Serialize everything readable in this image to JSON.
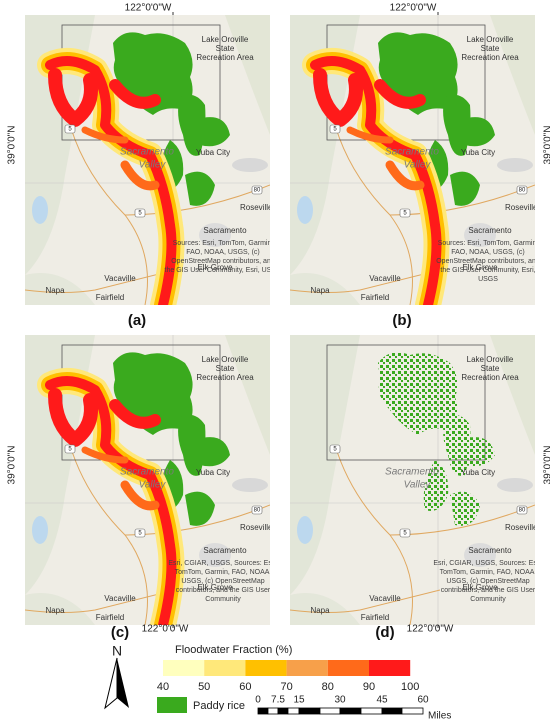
{
  "panels": [
    {
      "label": "(a)",
      "lon_label": "122°0'0\"W",
      "lat_label": "39°0'0\"N",
      "places": [
        "Lake Oroville",
        "State",
        "Recreation Area",
        "Yuba City",
        "Sacramento",
        "Valley",
        "Roseville",
        "Sacramento",
        "Elk Grove",
        "Vacaville",
        "Napa",
        "Fairfield",
        "80",
        "5",
        "5"
      ],
      "attribution": [
        "Sources: Esri, TomTom, Garmin,",
        "FAO, NOAA, USGS, (c)",
        "OpenStreetMap contributors, and",
        "the GIS User Community, Esri, USGS"
      ]
    },
    {
      "label": "(b)",
      "lon_label": "122°0'0\"W",
      "lat_label": "39°0'0\"N",
      "places": [
        "Lake Oroville",
        "State",
        "Recreation Area",
        "Yuba City",
        "Sacramento",
        "Valley",
        "Roseville",
        "Sacramento",
        "Elk Grove",
        "Vacaville",
        "Napa",
        "Fairfield",
        "80",
        "5",
        "5"
      ],
      "attribution": [
        "Sources: Esri, TomTom, Garmin,",
        "FAO, NOAA, USGS, (c)",
        "OpenStreetMap contributors, and",
        "the GIS User Community, Esri,",
        "USGS"
      ]
    },
    {
      "label": "(c)",
      "lon_label": "122°0'0\"W",
      "lat_label": "39°0'0\"N",
      "places": [
        "Lake Oroville",
        "State",
        "Recreation Area",
        "Yuba City",
        "Sacramento",
        "Valley",
        "Roseville",
        "Sacramento",
        "Elk Grove",
        "Vacaville",
        "Napa",
        "Fairfield",
        "80",
        "5",
        "5"
      ],
      "attribution": [
        "Esri, CGIAR, USGS, Sources: Esri,",
        "TomTom, Garmin, FAO, NOAA,",
        "USGS, (c) OpenStreetMap",
        "contributors, and the GIS User",
        "Community"
      ]
    },
    {
      "label": "(d)",
      "lon_label": "122°0'0\"W",
      "lat_label": "39°0'0\"N",
      "places": [
        "Lake Oroville",
        "State",
        "Recreation Area",
        "Yuba City",
        "Sacramento",
        "Valley",
        "Roseville",
        "Sacramento",
        "Elk Grove",
        "Vacaville",
        "Napa",
        "Fairfield",
        "80",
        "5",
        "5"
      ],
      "attribution": [
        "Esri, CGIAR, USGS, Sources: Esri,",
        "TomTom, Garmin, FAO, NOAA,",
        "USGS, (c) OpenStreetMap",
        "contributors, and the GIS User",
        "Community"
      ]
    }
  ],
  "legend": {
    "title": "Floodwater Fraction (%)",
    "colors": [
      "#ffffbe",
      "#ffe87a",
      "#ffc000",
      "#f7a04a",
      "#ff6a1a",
      "#ff1a1a"
    ],
    "ticks": [
      "40",
      "50",
      "60",
      "70",
      "80",
      "90",
      "100"
    ],
    "paddy_label": "Paddy rice",
    "paddy_color": "#3aaa1e",
    "north": "N",
    "scale_labels": [
      "0",
      "7.5",
      "15",
      "30",
      "45",
      "60"
    ],
    "scale_unit": "Miles"
  }
}
